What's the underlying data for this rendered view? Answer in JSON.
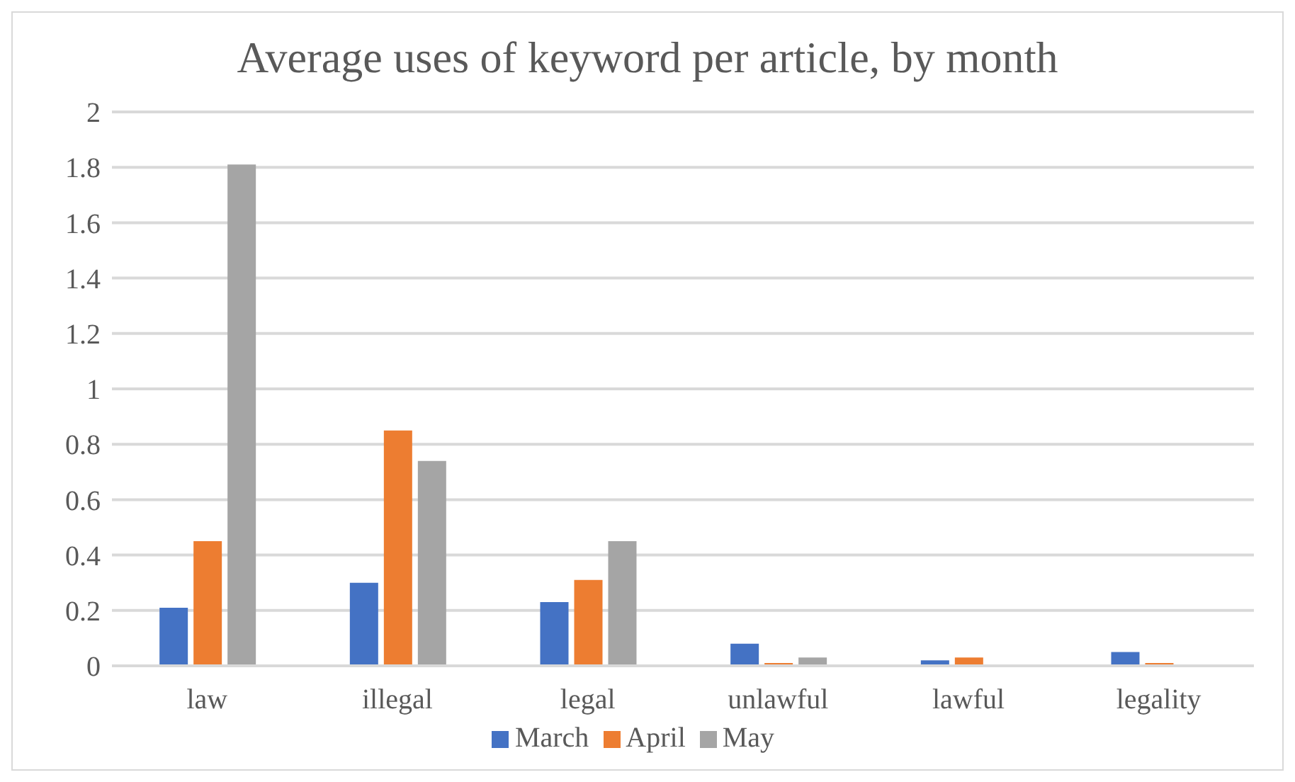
{
  "chart_data": {
    "type": "bar",
    "title": "Average uses of keyword per article, by month",
    "categories": [
      "law",
      "illegal",
      "legal",
      "unlawful",
      "lawful",
      "legality"
    ],
    "series": [
      {
        "name": "March",
        "color": "#4472c4",
        "values": [
          0.21,
          0.3,
          0.23,
          0.08,
          0.02,
          0.05
        ]
      },
      {
        "name": "April",
        "color": "#ed7d31",
        "values": [
          0.45,
          0.85,
          0.31,
          0.01,
          0.03,
          0.01
        ]
      },
      {
        "name": "May",
        "color": "#a5a5a5",
        "values": [
          1.81,
          0.74,
          0.45,
          0.03,
          0,
          0
        ]
      }
    ],
    "ylim": [
      0,
      2
    ],
    "yticks": [
      0,
      0.2,
      0.4,
      0.6,
      0.8,
      1,
      1.2,
      1.4,
      1.6,
      1.8,
      2
    ],
    "grid": "y",
    "legend": "bottom"
  }
}
